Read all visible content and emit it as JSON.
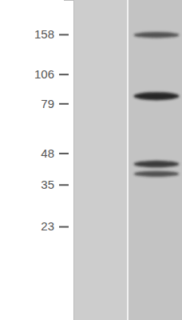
{
  "chart_data": {
    "type": "blot",
    "log": "y",
    "ylim": [
      9,
      223
    ],
    "yticks": [
      158,
      106,
      79,
      48,
      35,
      23
    ],
    "categories": [
      null,
      null
    ],
    "bands": [
      [],
      [
        157,
        85,
        43,
        39
      ]
    ],
    "band_intensity": [
      [],
      [
        0.55,
        1,
        0.75,
        0.55
      ]
    ]
  }
}
